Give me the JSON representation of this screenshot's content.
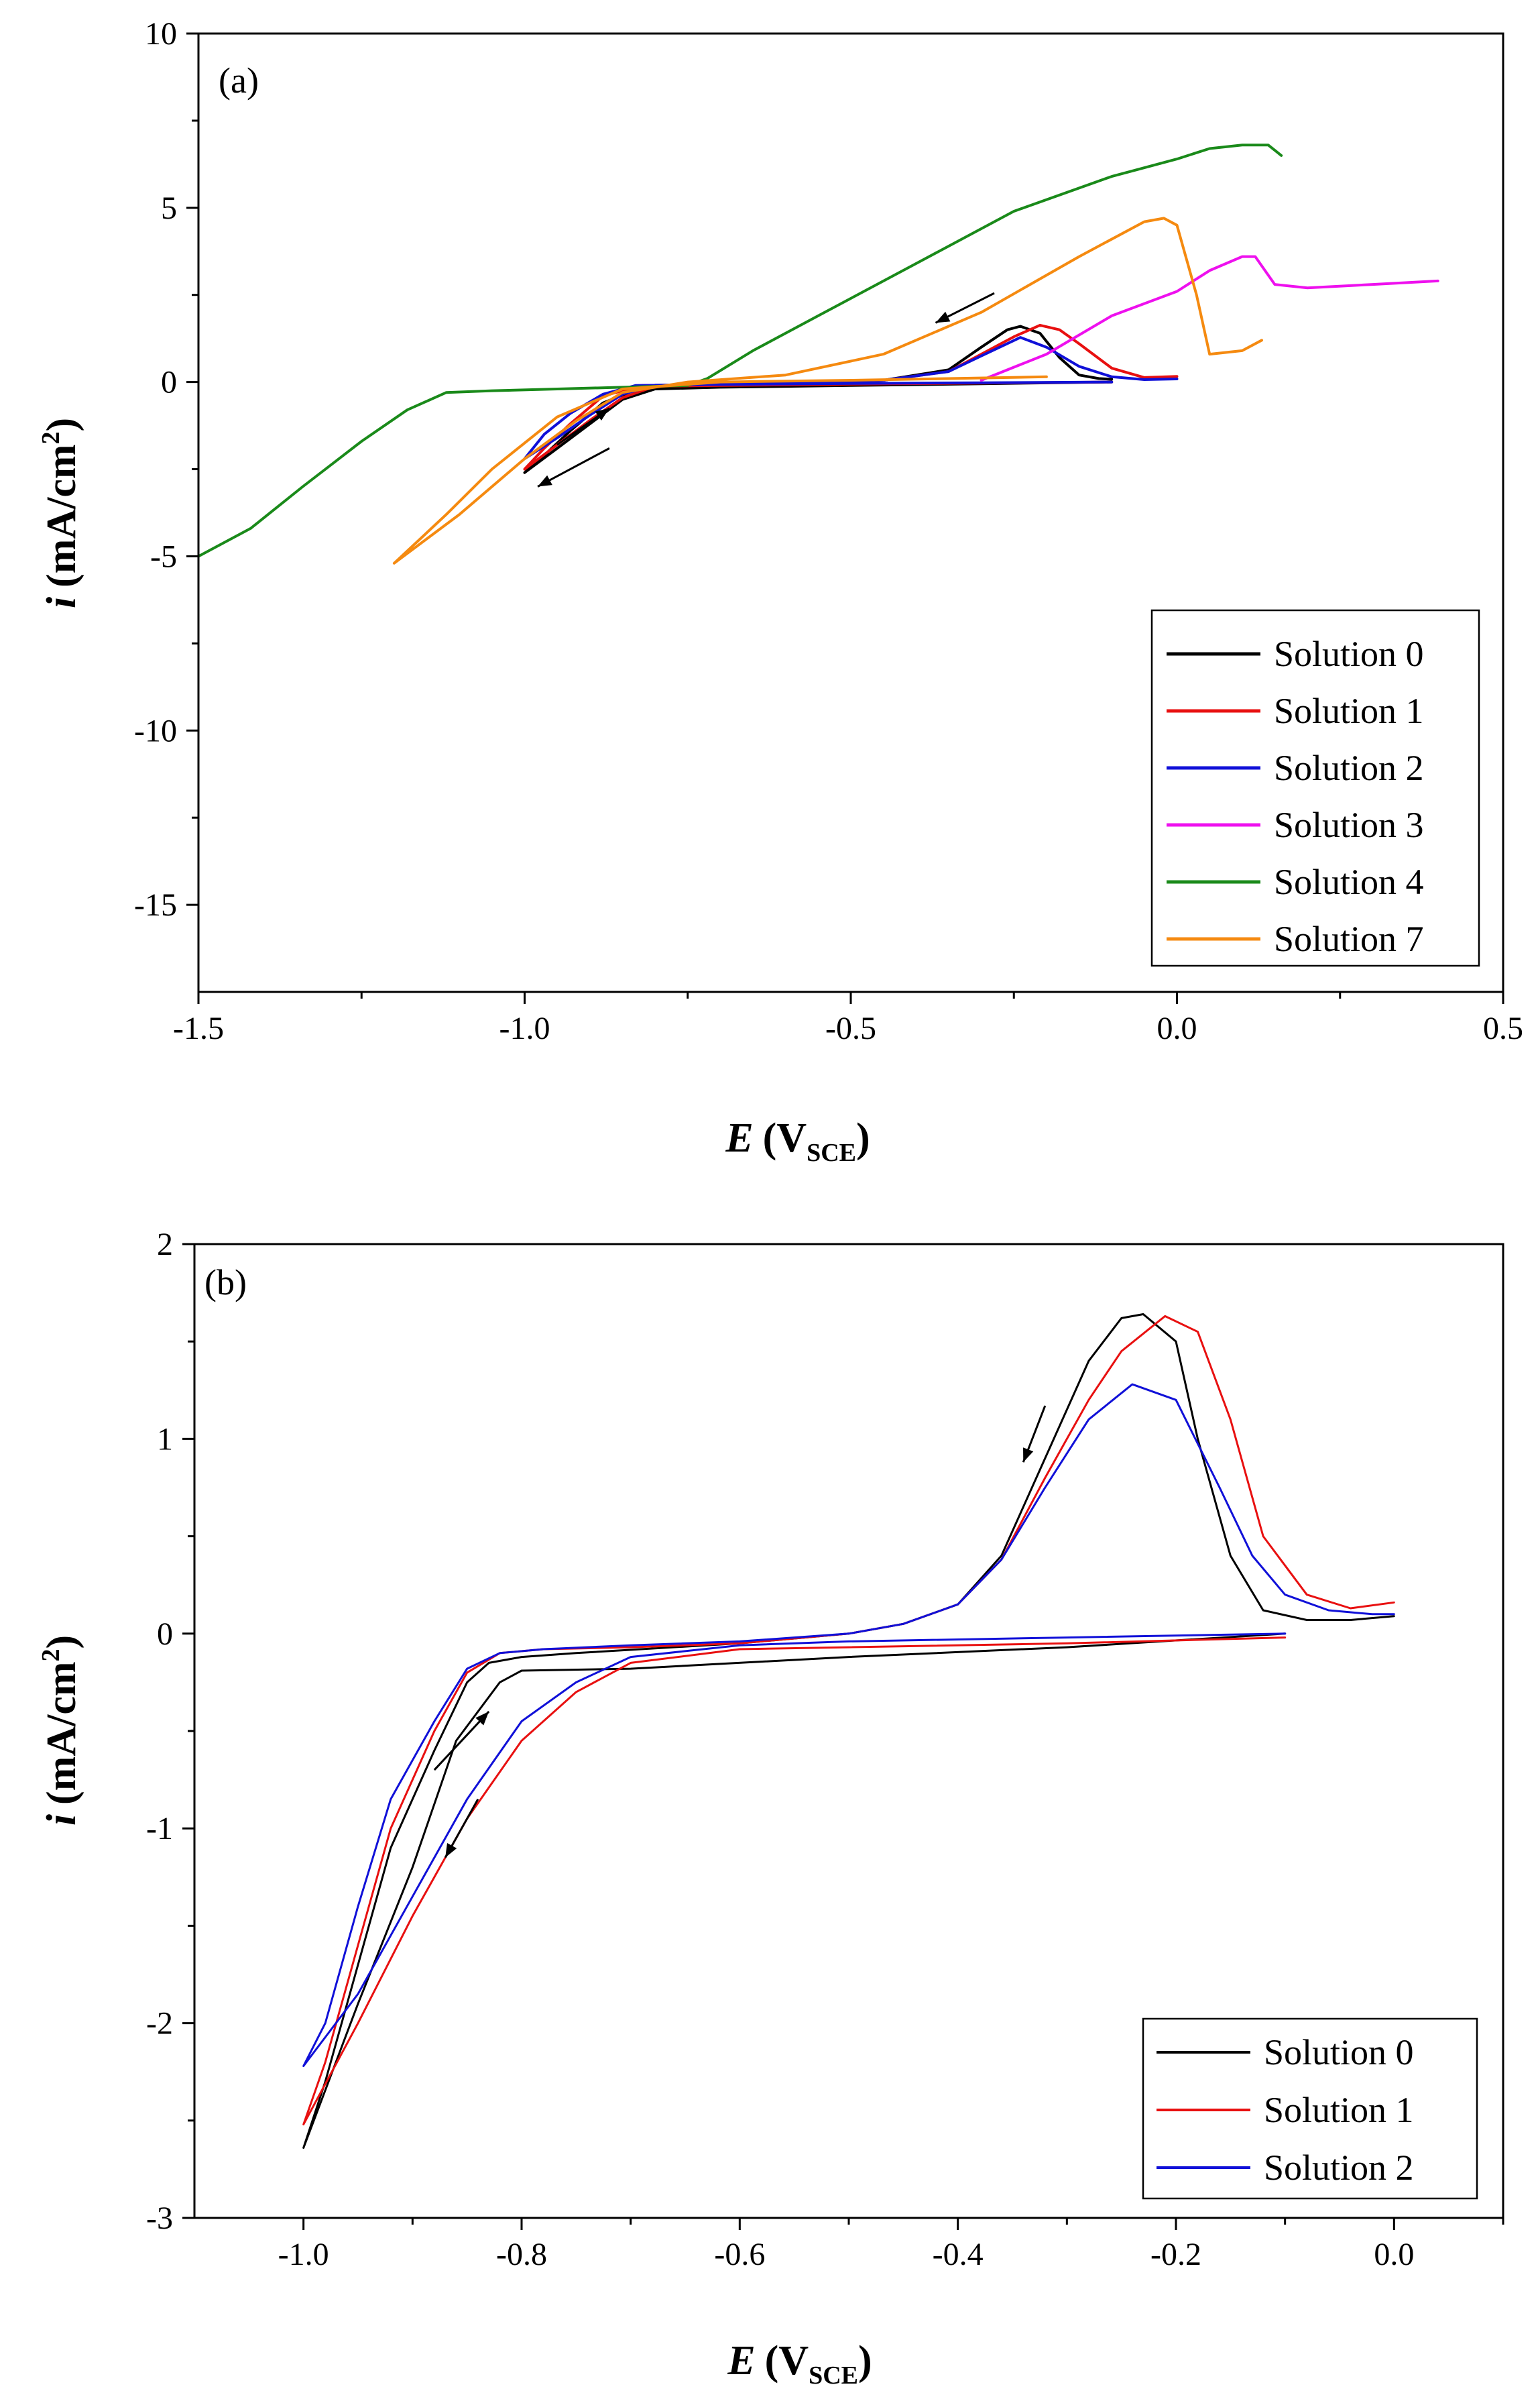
{
  "chart_data": [
    {
      "id": "a",
      "type": "line",
      "panel_label": "(a)",
      "xlabel": "E (VSCE)",
      "xlabel_main": "E",
      "xlabel_unit": "V",
      "xlabel_sub": "SCE",
      "ylabel": "i (mA/cm2)",
      "ylabel_main": "i",
      "ylabel_unit": "mA/cm",
      "ylabel_sup": "2",
      "xlim": [
        -1.5,
        0.5
      ],
      "ylim": [
        -17.5,
        10
      ],
      "xticks": [
        -1.5,
        -1.0,
        -0.5,
        0.0,
        0.5
      ],
      "xtick_labels": [
        "-1.5",
        "-1.0",
        "-0.5",
        "0.0",
        "0.5"
      ],
      "yticks": [
        -15,
        -10,
        -5,
        0,
        5,
        10
      ],
      "ytick_labels": [
        "-15",
        "-10",
        "-5",
        "0",
        "5",
        "10"
      ],
      "legend_position": "bottom-right",
      "series": [
        {
          "name": "Solution 0",
          "color": "#000000",
          "x": [
            -0.1,
            -0.3,
            -0.5,
            -0.7,
            -0.8,
            -0.85,
            -0.9,
            -0.95,
            -1.0,
            -0.97,
            -0.93,
            -0.88,
            -0.82,
            -0.75,
            -0.6,
            -0.45,
            -0.35,
            -0.3,
            -0.26,
            -0.24,
            -0.21,
            -0.18,
            -0.15,
            -0.12,
            -0.1
          ],
          "y": [
            0,
            -0.05,
            -0.1,
            -0.15,
            -0.2,
            -0.5,
            -1.2,
            -1.9,
            -2.6,
            -2.1,
            -1.4,
            -0.6,
            -0.15,
            -0.1,
            -0.05,
            0.05,
            0.35,
            1.0,
            1.5,
            1.6,
            1.4,
            0.7,
            0.2,
            0.1,
            0.08
          ]
        },
        {
          "name": "Solution 1",
          "color": "#e81010",
          "x": [
            -0.1,
            -0.3,
            -0.5,
            -0.7,
            -0.8,
            -0.85,
            -0.9,
            -0.95,
            -1.0,
            -0.97,
            -0.93,
            -0.88,
            -0.82,
            -0.75,
            -0.6,
            -0.45,
            -0.35,
            -0.3,
            -0.25,
            -0.21,
            -0.18,
            -0.15,
            -0.1,
            -0.05,
            0.0
          ],
          "y": [
            0,
            -0.03,
            -0.06,
            -0.1,
            -0.12,
            -0.45,
            -1.1,
            -1.8,
            -2.5,
            -1.9,
            -1.2,
            -0.4,
            -0.1,
            -0.08,
            -0.05,
            0.05,
            0.3,
            0.8,
            1.3,
            1.63,
            1.5,
            1.1,
            0.4,
            0.13,
            0.16
          ]
        },
        {
          "name": "Solution 2",
          "color": "#1010d8",
          "x": [
            -0.1,
            -0.3,
            -0.5,
            -0.7,
            -0.8,
            -0.85,
            -0.9,
            -0.95,
            -1.0,
            -0.97,
            -0.93,
            -0.88,
            -0.83,
            -0.75,
            -0.6,
            -0.45,
            -0.35,
            -0.3,
            -0.24,
            -0.2,
            -0.15,
            -0.1,
            -0.05,
            0.0
          ],
          "y": [
            0,
            -0.02,
            -0.04,
            -0.07,
            -0.09,
            -0.35,
            -0.95,
            -1.6,
            -2.2,
            -1.5,
            -0.9,
            -0.35,
            -0.1,
            -0.08,
            -0.04,
            0.05,
            0.3,
            0.75,
            1.28,
            1.0,
            0.45,
            0.15,
            0.07,
            0.09
          ]
        },
        {
          "name": "Solution 3",
          "color": "#ee10ee",
          "x": [
            -0.3,
            -0.2,
            -0.1,
            0.0,
            0.05,
            0.1,
            0.12,
            0.15,
            0.2,
            0.3,
            0.4
          ],
          "y": [
            0.05,
            0.8,
            1.9,
            2.6,
            3.2,
            3.6,
            3.6,
            2.8,
            2.7,
            2.8,
            2.9
          ]
        },
        {
          "name": "Solution 4",
          "color": "#1a8a1a",
          "x": [
            -1.5,
            -1.42,
            -1.34,
            -1.25,
            -1.18,
            -1.12,
            -1.05,
            -0.95,
            -0.85,
            -0.75,
            -0.72,
            -0.65,
            -0.55,
            -0.4,
            -0.25,
            -0.1,
            0.0,
            0.05,
            0.1,
            0.14,
            0.16
          ],
          "y": [
            -5.0,
            -4.2,
            -3.0,
            -1.7,
            -0.8,
            -0.3,
            -0.25,
            -0.2,
            -0.15,
            -0.1,
            0.1,
            0.9,
            1.9,
            3.4,
            4.9,
            5.9,
            6.4,
            6.7,
            6.8,
            6.8,
            6.5
          ]
        },
        {
          "name": "Solution 7",
          "color": "#f58a10",
          "x": [
            -0.2,
            -0.5,
            -0.7,
            -0.85,
            -0.95,
            -1.05,
            -1.12,
            -1.2,
            -1.1,
            -1.0,
            -0.92,
            -0.85,
            -0.75,
            -0.6,
            -0.45,
            -0.3,
            -0.15,
            -0.05,
            -0.02,
            0.0,
            0.03,
            0.05,
            0.1,
            0.13
          ],
          "y": [
            0.15,
            0.05,
            0.0,
            -0.2,
            -1.0,
            -2.5,
            -3.8,
            -5.2,
            -3.8,
            -2.2,
            -1.1,
            -0.3,
            0.0,
            0.2,
            0.8,
            2.0,
            3.6,
            4.6,
            4.7,
            4.5,
            2.5,
            0.8,
            0.9,
            1.2
          ]
        }
      ],
      "arrows": [
        {
          "x1": -0.95,
          "y1": -1.8,
          "x2": -0.87,
          "y2": -0.75
        },
        {
          "x1": -0.87,
          "y1": -1.9,
          "x2": -0.98,
          "y2": -3.0
        },
        {
          "x1": -0.28,
          "y1": 2.55,
          "x2": -0.37,
          "y2": 1.7
        }
      ]
    },
    {
      "id": "b",
      "type": "line",
      "panel_label": "(b)",
      "xlabel": "E (VSCE)",
      "xlabel_main": "E",
      "xlabel_unit": "V",
      "xlabel_sub": "SCE",
      "ylabel": "i (mA/cm2)",
      "ylabel_main": "i",
      "ylabel_unit": "mA/cm",
      "ylabel_sup": "2",
      "xlim": [
        -1.1,
        0.1
      ],
      "ylim": [
        -3,
        2
      ],
      "xticks": [
        -1.0,
        -0.8,
        -0.6,
        -0.4,
        -0.2,
        0.0
      ],
      "xtick_labels": [
        "-1.0",
        "-0.8",
        "-0.6",
        "-0.4",
        "-0.2",
        "0.0"
      ],
      "yticks": [
        -3,
        -2,
        -1,
        0,
        1,
        2
      ],
      "ytick_labels": [
        "-3",
        "-2",
        "-1",
        "0",
        "1",
        "2"
      ],
      "legend_position": "bottom-right",
      "series": [
        {
          "name": "Solution 0",
          "color": "#000000",
          "x": [
            -0.1,
            -0.3,
            -0.5,
            -0.7,
            -0.8,
            -0.82,
            -0.86,
            -0.9,
            -0.95,
            -1.0,
            -0.98,
            -0.95,
            -0.92,
            -0.88,
            -0.85,
            -0.83,
            -0.8,
            -0.75,
            -0.6,
            -0.5,
            -0.45,
            -0.4,
            -0.36,
            -0.32,
            -0.28,
            -0.25,
            -0.23,
            -0.2,
            -0.18,
            -0.15,
            -0.12,
            -0.08,
            -0.04,
            0.0
          ],
          "y": [
            0.0,
            -0.07,
            -0.12,
            -0.18,
            -0.19,
            -0.25,
            -0.55,
            -1.2,
            -1.9,
            -2.64,
            -2.3,
            -1.7,
            -1.1,
            -0.6,
            -0.25,
            -0.15,
            -0.12,
            -0.1,
            -0.05,
            0.0,
            0.05,
            0.15,
            0.4,
            0.9,
            1.4,
            1.62,
            1.64,
            1.5,
            1.0,
            0.4,
            0.12,
            0.07,
            0.07,
            0.09
          ]
        },
        {
          "name": "Solution 1",
          "color": "#e81010",
          "x": [
            -0.1,
            -0.3,
            -0.5,
            -0.6,
            -0.7,
            -0.75,
            -0.8,
            -0.85,
            -0.9,
            -0.95,
            -1.0,
            -0.98,
            -0.95,
            -0.92,
            -0.88,
            -0.85,
            -0.82,
            -0.78,
            -0.7,
            -0.6,
            -0.5,
            -0.45,
            -0.4,
            -0.36,
            -0.32,
            -0.28,
            -0.25,
            -0.21,
            -0.18,
            -0.15,
            -0.12,
            -0.08,
            -0.04,
            0.0
          ],
          "y": [
            -0.02,
            -0.05,
            -0.07,
            -0.08,
            -0.15,
            -0.3,
            -0.55,
            -0.95,
            -1.45,
            -2.0,
            -2.52,
            -2.2,
            -1.6,
            -1.0,
            -0.5,
            -0.2,
            -0.1,
            -0.08,
            -0.07,
            -0.05,
            0.0,
            0.05,
            0.15,
            0.38,
            0.8,
            1.2,
            1.45,
            1.63,
            1.55,
            1.1,
            0.5,
            0.2,
            0.13,
            0.16
          ]
        },
        {
          "name": "Solution 2",
          "color": "#1010d8",
          "x": [
            -0.1,
            -0.3,
            -0.5,
            -0.6,
            -0.7,
            -0.75,
            -0.8,
            -0.85,
            -0.9,
            -0.95,
            -1.0,
            -0.98,
            -0.95,
            -0.92,
            -0.88,
            -0.85,
            -0.82,
            -0.78,
            -0.7,
            -0.6,
            -0.5,
            -0.45,
            -0.4,
            -0.36,
            -0.32,
            -0.28,
            -0.24,
            -0.2,
            -0.16,
            -0.13,
            -0.1,
            -0.06,
            -0.02,
            0.0
          ],
          "y": [
            0.0,
            -0.02,
            -0.04,
            -0.06,
            -0.12,
            -0.25,
            -0.45,
            -0.85,
            -1.35,
            -1.85,
            -2.22,
            -2.0,
            -1.4,
            -0.85,
            -0.45,
            -0.18,
            -0.1,
            -0.08,
            -0.06,
            -0.04,
            0.0,
            0.05,
            0.15,
            0.38,
            0.75,
            1.1,
            1.28,
            1.2,
            0.75,
            0.4,
            0.2,
            0.12,
            0.1,
            0.1
          ]
        }
      ],
      "arrows": [
        {
          "x1": -0.88,
          "y1": -0.7,
          "x2": -0.83,
          "y2": -0.4
        },
        {
          "x1": -0.84,
          "y1": -0.85,
          "x2": -0.87,
          "y2": -1.15
        },
        {
          "x1": -0.32,
          "y1": 1.17,
          "x2": -0.34,
          "y2": 0.88
        }
      ]
    }
  ]
}
